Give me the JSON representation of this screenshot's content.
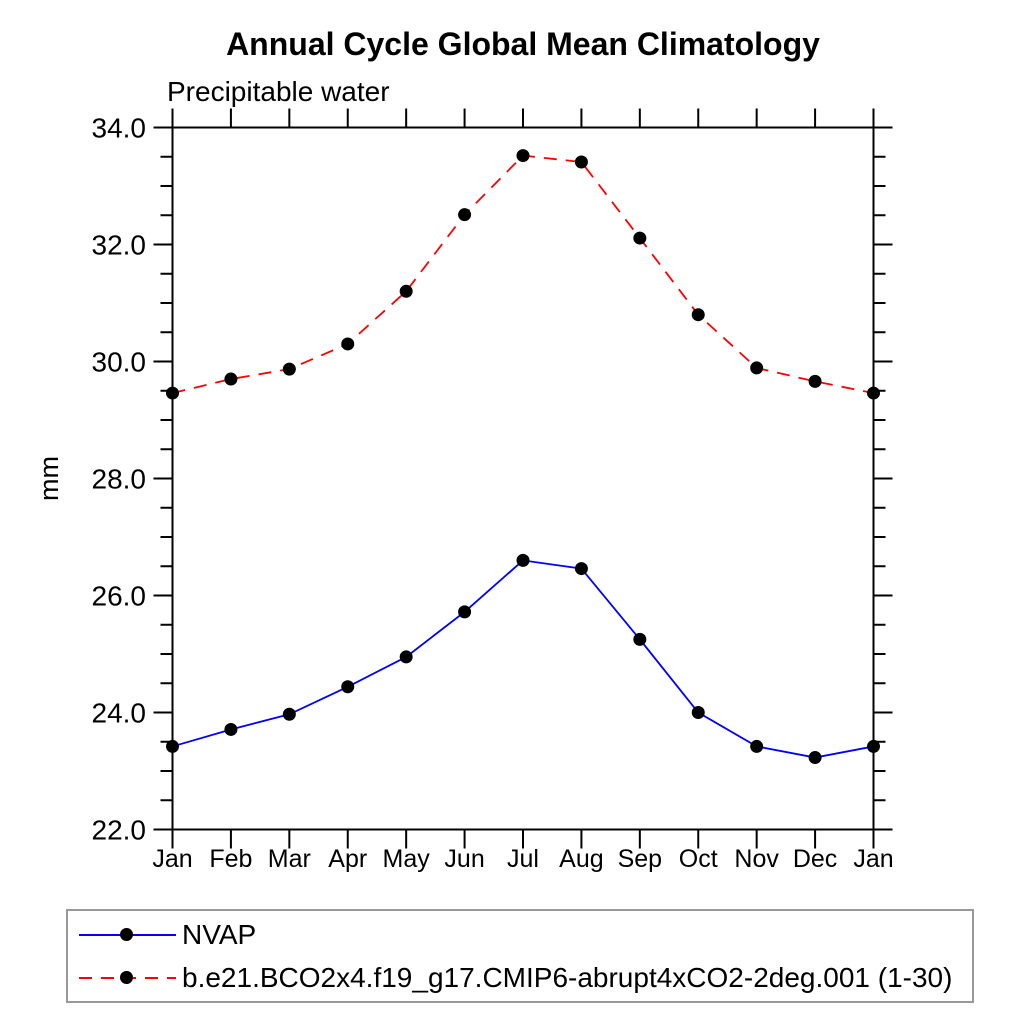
{
  "title": "Annual Cycle Global Mean Climatology",
  "subtitle": "Precipitable water",
  "chart_data": {
    "type": "line",
    "x_categories": [
      "Jan",
      "Feb",
      "Mar",
      "Apr",
      "May",
      "Jun",
      "Jul",
      "Aug",
      "Sep",
      "Oct",
      "Nov",
      "Dec",
      "Jan"
    ],
    "xlabel": "",
    "ylabel": "mm",
    "ylim": [
      22.0,
      34.0
    ],
    "ytick_major_step": 2.0,
    "ytick_minor_step": 0.5,
    "ytick_labels": [
      "22.0",
      "24.0",
      "26.0",
      "28.0",
      "30.0",
      "32.0",
      "34.0"
    ],
    "grid": false,
    "legend_position": "bottom-left",
    "series": [
      {
        "name": "NVAP",
        "color": "#0000ff",
        "line": "solid",
        "marker": "circle",
        "marker_color": "#000000",
        "values": [
          23.42,
          23.71,
          23.97,
          24.44,
          24.95,
          25.72,
          26.6,
          26.46,
          25.25,
          24.0,
          23.42,
          23.23,
          23.42
        ]
      },
      {
        "name": "b.e21.BCO2x4.f19_g17.CMIP6-abrupt4xCO2-2deg.001 (1-30)",
        "color": "#ff0000",
        "line": "dashed",
        "marker": "circle",
        "marker_color": "#000000",
        "values": [
          29.46,
          29.7,
          29.87,
          30.3,
          31.2,
          32.51,
          33.52,
          33.41,
          32.11,
          30.8,
          29.89,
          29.66,
          29.46
        ]
      }
    ]
  },
  "legend": {
    "items": [
      {
        "label": "NVAP",
        "color": "#0000ff",
        "line": "solid"
      },
      {
        "label": "b.e21.BCO2x4.f19_g17.CMIP6-abrupt4xCO2-2deg.001 (1-30)",
        "color": "#ff0000",
        "line": "dashed"
      }
    ]
  }
}
